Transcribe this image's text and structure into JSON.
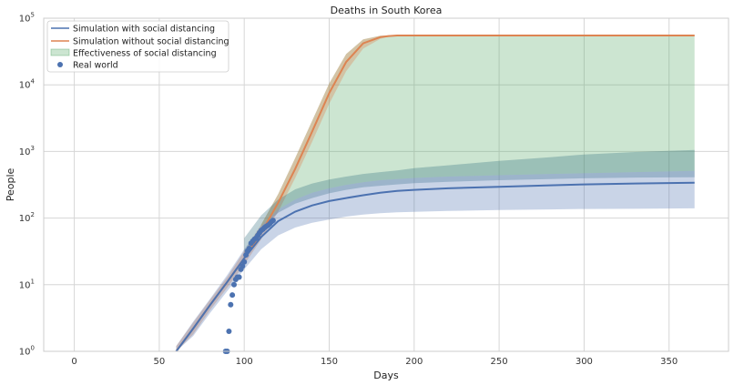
{
  "chart_data": {
    "type": "line",
    "title": "Deaths in South Korea",
    "xlabel": "Days",
    "ylabel": "People",
    "xlim": [
      -18,
      385
    ],
    "ylim": [
      1,
      100000
    ],
    "yscale": "log",
    "grid": true,
    "legend_position": "top-left",
    "x_ticks": [
      0,
      50,
      100,
      150,
      200,
      250,
      300,
      350
    ],
    "y_ticks": [
      {
        "value": 1,
        "base": "10",
        "exp": "0"
      },
      {
        "value": 10,
        "base": "10",
        "exp": "1"
      },
      {
        "value": 100,
        "base": "10",
        "exp": "2"
      },
      {
        "value": 1000,
        "base": "10",
        "exp": "3"
      },
      {
        "value": 10000,
        "base": "10",
        "exp": "4"
      },
      {
        "value": 100000,
        "base": "10",
        "exp": "5"
      }
    ],
    "legend": [
      {
        "label": "Simulation with social distancing",
        "kind": "line",
        "color": "#4c72b0"
      },
      {
        "label": "Simulation without social distancing",
        "kind": "line",
        "color": "#dd8452"
      },
      {
        "label": "Effectiveness of social distancing",
        "kind": "patch",
        "color": "#55a868"
      },
      {
        "label": "Real world",
        "kind": "dot",
        "color": "#4c72b0"
      }
    ],
    "colors": {
      "with_sd": "#4c72b0",
      "without_sd": "#dd8452",
      "effectiveness": "#55a868",
      "real": "#4c72b0"
    },
    "series": [
      {
        "name": "Simulation with social distancing",
        "x": [
          60,
          70,
          80,
          90,
          100,
          110,
          120,
          130,
          140,
          150,
          160,
          170,
          180,
          190,
          200,
          220,
          250,
          280,
          300,
          330,
          365
        ],
        "y": [
          1,
          2.2,
          5,
          11,
          25,
          52,
          90,
          125,
          155,
          180,
          200,
          220,
          240,
          255,
          265,
          280,
          295,
          310,
          320,
          330,
          340
        ],
        "lower": [
          1,
          1.7,
          3.8,
          8,
          17,
          34,
          55,
          72,
          85,
          95,
          105,
          113,
          118,
          122,
          124,
          128,
          132,
          135,
          137,
          138,
          140
        ],
        "upper": [
          1.2,
          2.8,
          6.2,
          14,
          34,
          75,
          135,
          190,
          240,
          280,
          315,
          345,
          370,
          385,
          400,
          420,
          440,
          460,
          470,
          490,
          510
        ]
      },
      {
        "name": "Simulation without social distancing",
        "x": [
          60,
          70,
          80,
          90,
          100,
          110,
          120,
          130,
          140,
          150,
          160,
          170,
          180,
          185,
          190,
          200,
          250,
          300,
          365
        ],
        "y": [
          1,
          2.2,
          5,
          11,
          25,
          60,
          170,
          550,
          2000,
          7500,
          22000,
          42000,
          52000,
          54000,
          55000,
          55000,
          55000,
          55000,
          55000
        ],
        "lower": [
          1,
          1.8,
          4.2,
          9,
          20,
          48,
          125,
          400,
          1400,
          5200,
          16000,
          35000,
          49000,
          53000,
          54500,
          54800,
          54800,
          54800,
          54800
        ],
        "upper": [
          1.2,
          2.7,
          6,
          13,
          32,
          80,
          230,
          800,
          2900,
          10500,
          29000,
          48000,
          54500,
          55500,
          55700,
          55700,
          55700,
          55700,
          55700
        ]
      }
    ],
    "effectiveness_band": {
      "x": [
        110,
        120,
        130,
        140,
        150,
        160,
        170,
        180,
        190,
        200,
        220,
        250,
        280,
        300,
        330,
        365
      ],
      "lower": [
        75,
        135,
        190,
        240,
        280,
        315,
        345,
        370,
        385,
        400,
        420,
        440,
        460,
        470,
        490,
        510
      ],
      "upper": [
        80,
        230,
        800,
        2900,
        10500,
        29000,
        48000,
        54500,
        55700,
        55700,
        55700,
        55700,
        55700,
        55700,
        55700,
        55700
      ]
    },
    "outer_band": {
      "x": [
        100,
        110,
        120,
        130,
        140,
        150,
        160,
        170,
        180,
        190,
        200,
        220,
        250,
        280,
        300,
        330,
        365
      ],
      "lower": [
        30,
        70,
        120,
        165,
        200,
        235,
        265,
        290,
        305,
        320,
        335,
        350,
        370,
        385,
        395,
        405,
        410
      ],
      "upper": [
        50,
        110,
        190,
        270,
        330,
        380,
        420,
        460,
        490,
        520,
        560,
        620,
        720,
        820,
        900,
        980,
        1050
      ]
    },
    "real_world": {
      "name": "Real world",
      "x": [
        89,
        90,
        91,
        92,
        93,
        94,
        95,
        96,
        97,
        98,
        99,
        100,
        101,
        102,
        103,
        104,
        105,
        106,
        107,
        108,
        109,
        110,
        111,
        112,
        113,
        114,
        115,
        116,
        117
      ],
      "y": [
        1,
        1,
        2,
        5,
        7,
        10,
        12,
        13,
        13,
        17,
        19,
        22,
        28,
        32,
        35,
        42,
        45,
        48,
        50,
        55,
        60,
        65,
        68,
        72,
        75,
        78,
        82,
        88,
        92
      ]
    }
  }
}
